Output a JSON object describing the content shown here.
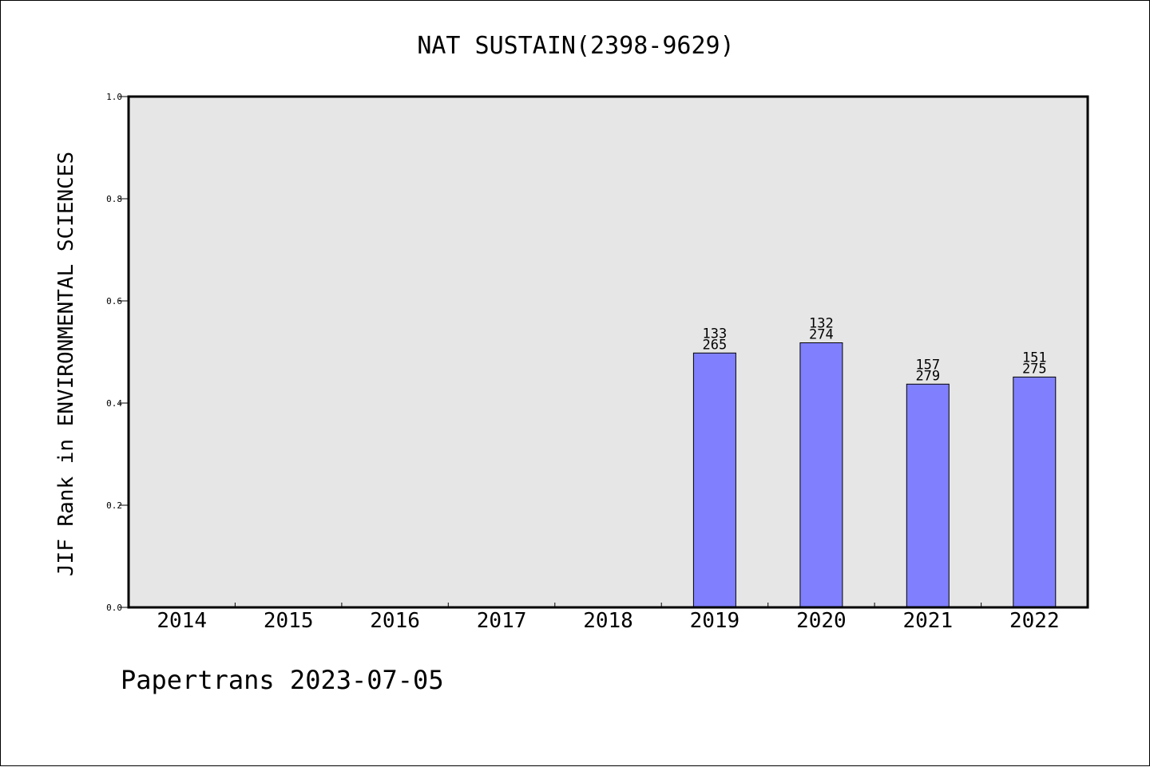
{
  "footer": {
    "text": "Papertrans 2023-07-05"
  },
  "chart_data": {
    "type": "bar",
    "title": "NAT SUSTAIN(2398-9629)",
    "ylabel": "JIF Rank in ENVIRONMENTAL SCIENCES",
    "xlabel": "",
    "ylim": [
      0,
      1.0
    ],
    "yticks": [
      "0.0",
      "0.2",
      "0.4",
      "0.6",
      "0.8",
      "1.0"
    ],
    "categories": [
      "2014",
      "2015",
      "2016",
      "2017",
      "2018",
      "2019",
      "2020",
      "2021",
      "2022"
    ],
    "values": [
      null,
      null,
      null,
      null,
      null,
      0.498,
      0.518,
      0.437,
      0.451
    ],
    "bar_labels": [
      null,
      null,
      null,
      null,
      null,
      [
        "133",
        "265"
      ],
      [
        "132",
        "274"
      ],
      [
        "157",
        "279"
      ],
      [
        "151",
        "275"
      ]
    ],
    "grid": false,
    "colors": {
      "bar_fill": "#8080ff",
      "plot_background": "#e6e6e6",
      "axis": "#000000"
    }
  }
}
